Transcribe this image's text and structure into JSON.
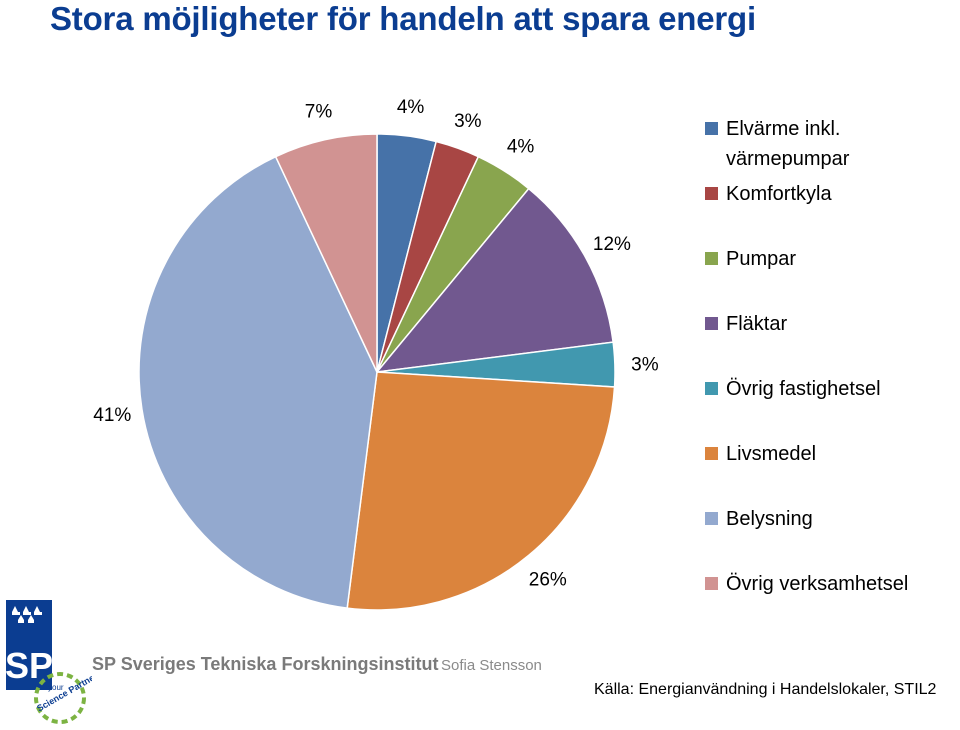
{
  "header": {
    "title": "Stora möjligheter för handeln att spara energi"
  },
  "chart_data": {
    "type": "pie",
    "title": "",
    "categories": [
      "Elvärme inkl. värmepumpar",
      "Komfortkyla",
      "Pumpar",
      "Fläktar",
      "Övrig fastighetsel",
      "Livsmedel",
      "Belysning",
      "Övrig verksamhetsel"
    ],
    "legend_lines": [
      [
        "Elvärme inkl.",
        "värmepumpar"
      ],
      [
        "Komfortkyla"
      ],
      [
        "Pumpar"
      ],
      [
        "Fläktar"
      ],
      [
        "Övrig fastighetsel"
      ],
      [
        "Livsmedel"
      ],
      [
        "Belysning"
      ],
      [
        "Övrig verksamhetsel"
      ]
    ],
    "values": [
      4,
      3,
      4,
      12,
      3,
      26,
      41,
      7
    ],
    "labels": [
      "4%",
      "3%",
      "4%",
      "12%",
      "3%",
      "26%",
      "41%",
      "7%"
    ],
    "colors": [
      "#4672a8",
      "#a84644",
      "#89a54e",
      "#71588f",
      "#4198af",
      "#db843d",
      "#93a9cf",
      "#d19392"
    ],
    "legend_position": "right",
    "start_angle_deg": 0,
    "direction": "clockwise"
  },
  "footer": {
    "logo_text": "SP",
    "logo_tagline_small": "your",
    "logo_tagline": "Science Partner",
    "organization": "SP Sveriges Tekniska Forskningsinstitut",
    "author": "Sofia Stensson",
    "source": "Källa: Energianvändning i Handelslokaler, STIL2"
  }
}
